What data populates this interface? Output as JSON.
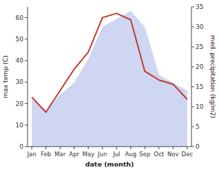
{
  "chart_data": {
    "type": "line",
    "xlabel": "date (month)",
    "ylabel": "max temp (C)",
    "y2label": "med. precipitation (kg/m2)",
    "categories": [
      "Jan",
      "Feb",
      "Mar",
      "Apr",
      "May",
      "Jun",
      "Jul",
      "Aug",
      "Sep",
      "Oct",
      "Nov",
      "Dec"
    ],
    "series": [
      {
        "type": "area",
        "axis": "y2",
        "color": "#c5cff0",
        "values": [
          12,
          9,
          13,
          16,
          22,
          30,
          32,
          34,
          30,
          18,
          16,
          14
        ]
      },
      {
        "type": "line",
        "color": "#c0392b",
        "values": [
          23,
          16,
          26,
          36,
          44,
          60,
          62,
          59,
          35,
          31,
          29,
          22
        ]
      }
    ],
    "ylim": [
      0,
      65
    ],
    "yticks": [
      0,
      10,
      20,
      30,
      40,
      50,
      60
    ],
    "y2lim": [
      0,
      35
    ],
    "y2ticks": [
      0,
      5,
      10,
      15,
      20,
      25,
      30,
      35
    ],
    "grid": false
  }
}
